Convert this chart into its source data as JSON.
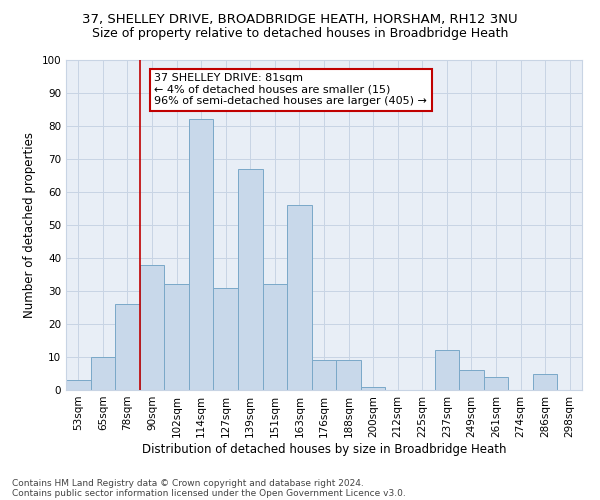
{
  "title1": "37, SHELLEY DRIVE, BROADBRIDGE HEATH, HORSHAM, RH12 3NU",
  "title2": "Size of property relative to detached houses in Broadbridge Heath",
  "xlabel": "Distribution of detached houses by size in Broadbridge Heath",
  "ylabel": "Number of detached properties",
  "footnote1": "Contains HM Land Registry data © Crown copyright and database right 2024.",
  "footnote2": "Contains public sector information licensed under the Open Government Licence v3.0.",
  "bin_labels": [
    "53sqm",
    "65sqm",
    "78sqm",
    "90sqm",
    "102sqm",
    "114sqm",
    "127sqm",
    "139sqm",
    "151sqm",
    "163sqm",
    "176sqm",
    "188sqm",
    "200sqm",
    "212sqm",
    "225sqm",
    "237sqm",
    "249sqm",
    "261sqm",
    "274sqm",
    "286sqm",
    "298sqm"
  ],
  "bar_heights": [
    3,
    10,
    26,
    38,
    32,
    82,
    31,
    67,
    32,
    56,
    9,
    9,
    1,
    0,
    0,
    12,
    6,
    4,
    0,
    5,
    0
  ],
  "bar_color": "#c8d8ea",
  "bar_edgecolor": "#7aa8c8",
  "highlight_color": "#c00000",
  "annotation_line1": "37 SHELLEY DRIVE: 81sqm",
  "annotation_line2": "← 4% of detached houses are smaller (15)",
  "annotation_line3": "96% of semi-detached houses are larger (405) →",
  "annotation_box_facecolor": "white",
  "annotation_box_edgecolor": "#c00000",
  "ylim": [
    0,
    100
  ],
  "yticks": [
    0,
    10,
    20,
    30,
    40,
    50,
    60,
    70,
    80,
    90,
    100
  ],
  "grid_color": "#c8d4e4",
  "fig_background": "white",
  "plot_background": "#e8eef6",
  "red_line_x": 2.5,
  "title1_fontsize": 9.5,
  "title2_fontsize": 9,
  "xlabel_fontsize": 8.5,
  "ylabel_fontsize": 8.5,
  "tick_fontsize": 7.5,
  "annot_fontsize": 8,
  "footnote_fontsize": 6.5
}
